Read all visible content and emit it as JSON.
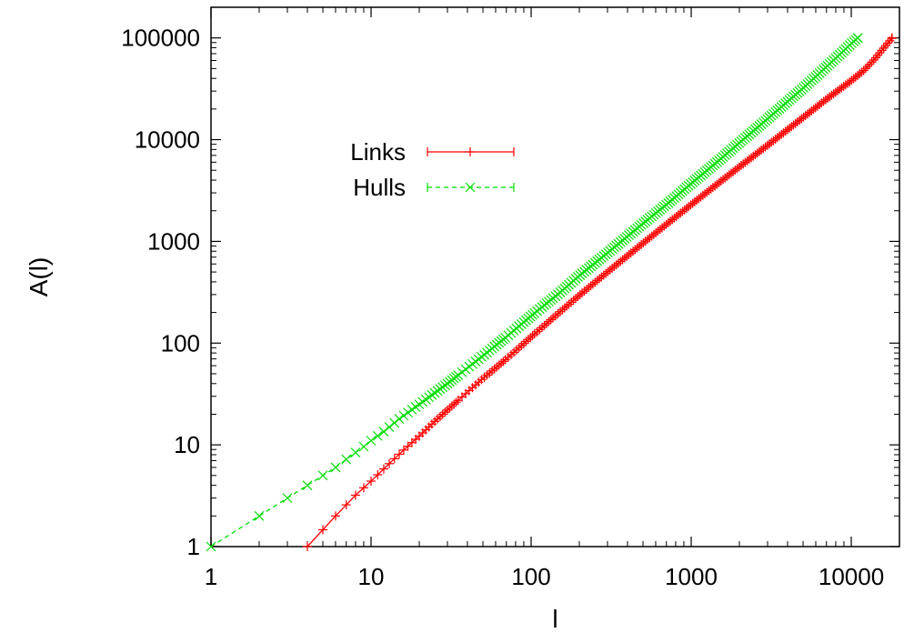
{
  "chart_data": {
    "type": "line",
    "title": "",
    "xlabel": "l",
    "ylabel": "A(l)",
    "x_scale": "log",
    "y_scale": "log",
    "xlim": [
      1,
      20000
    ],
    "ylim": [
      1,
      200000
    ],
    "x_ticks": [
      {
        "value": 1,
        "label": "1"
      },
      {
        "value": 10,
        "label": "10"
      },
      {
        "value": 100,
        "label": "100"
      },
      {
        "value": 1000,
        "label": "1000"
      },
      {
        "value": 10000,
        "label": "10000"
      }
    ],
    "y_ticks": [
      {
        "value": 1,
        "label": "1"
      },
      {
        "value": 10,
        "label": "10"
      },
      {
        "value": 100,
        "label": "100"
      },
      {
        "value": 1000,
        "label": "1000"
      },
      {
        "value": 10000,
        "label": "10000"
      },
      {
        "value": 100000,
        "label": "100000"
      }
    ],
    "grid": false,
    "legend_position": "upper-left",
    "series": [
      {
        "name": "Links",
        "color": "#ff0000",
        "line_style": "solid",
        "marker": "plus",
        "x": [
          4,
          6,
          8,
          10,
          12,
          14,
          16,
          18,
          20,
          25,
          30,
          40,
          50,
          60,
          70,
          80,
          100,
          150,
          200,
          300,
          500,
          700,
          1000,
          1500,
          2000,
          3000,
          5000,
          7000,
          10000,
          12000,
          14000,
          16000,
          18000
        ],
        "y": [
          1,
          2,
          3.2,
          4.4,
          5.8,
          7.3,
          8.9,
          10.5,
          12.2,
          17,
          22,
          33,
          45,
          57,
          70,
          84,
          115,
          200,
          295,
          500,
          960,
          1470,
          2300,
          3800,
          5400,
          8800,
          16500,
          25000,
          38000,
          48000,
          62000,
          80000,
          100000
        ]
      },
      {
        "name": "Hulls",
        "color": "#00dd00",
        "line_style": "dashed",
        "marker": "cross",
        "x": [
          1,
          2,
          3,
          4,
          5,
          6,
          7,
          8,
          9,
          10,
          12,
          15,
          20,
          30,
          40,
          50,
          70,
          100,
          150,
          200,
          300,
          500,
          700,
          1000,
          1500,
          2000,
          3000,
          5000,
          7000,
          9000,
          10000,
          11000
        ],
        "y": [
          1,
          2,
          3,
          4,
          5,
          6,
          7.2,
          8.4,
          9.6,
          11,
          13.5,
          18,
          25,
          40,
          57,
          75,
          115,
          185,
          310,
          460,
          770,
          1500,
          2300,
          3700,
          6300,
          9300,
          16000,
          32000,
          52000,
          75000,
          88000,
          100000
        ]
      }
    ]
  }
}
